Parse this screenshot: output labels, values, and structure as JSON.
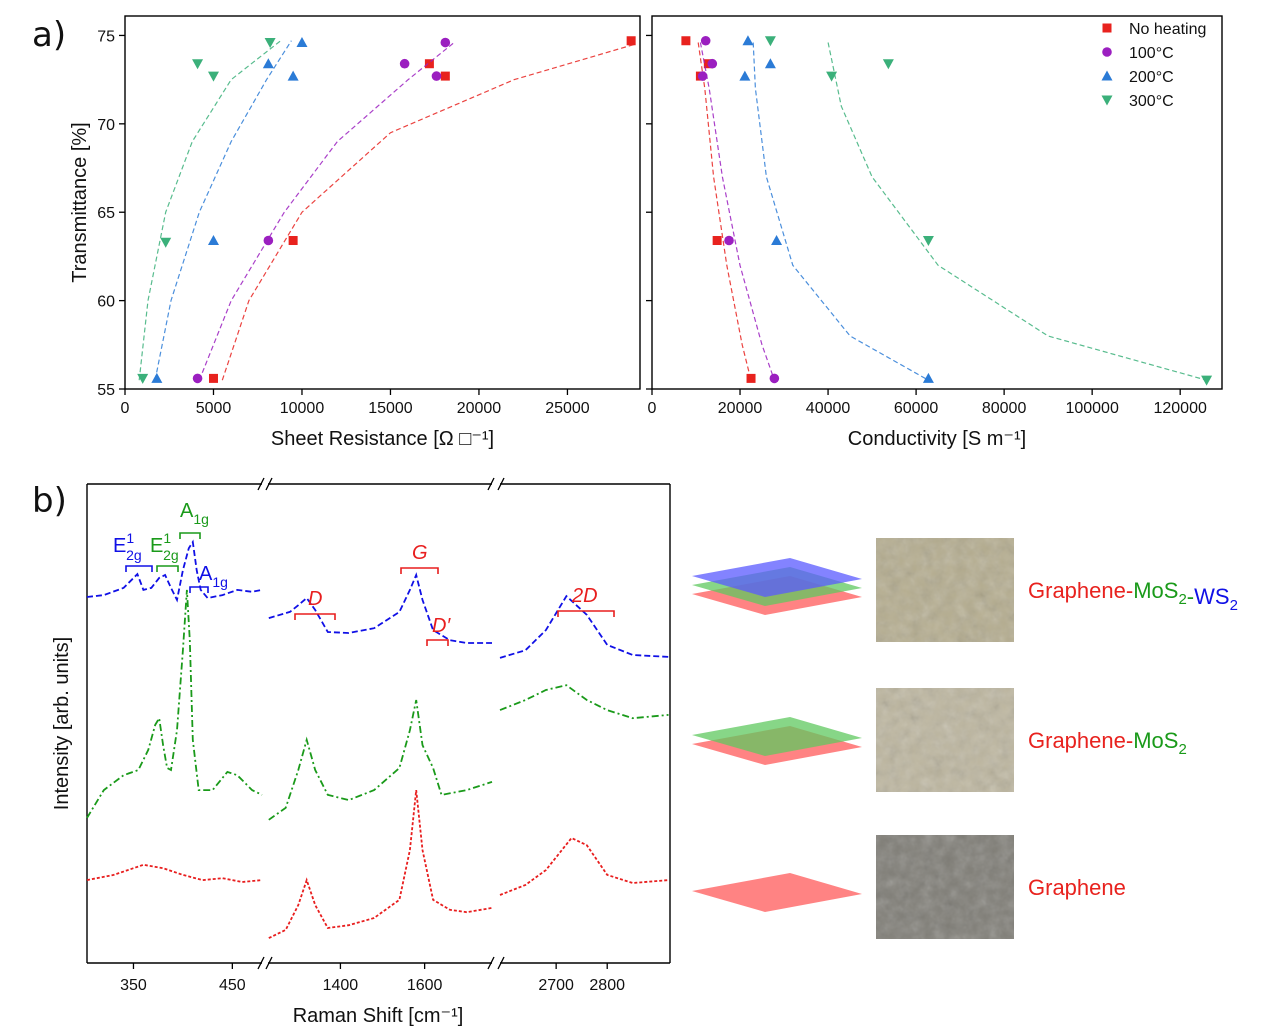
{
  "chart_data": [
    {
      "type": "scatter",
      "panel": "a)",
      "xlabel": "Sheet Resistance [Ω □⁻¹]",
      "ylabel": "Transmittance [%]",
      "xlim": [
        0,
        29100
      ],
      "xticks": [
        0,
        5000,
        10000,
        15000,
        20000,
        25000
      ],
      "ylim": [
        55,
        76.1
      ],
      "yticks": [
        55,
        60,
        65,
        70,
        75
      ],
      "series": [
        {
          "color": "#e8221e",
          "marker": "square",
          "x": [
            28600,
            17200,
            18100,
            9500,
            5000
          ],
          "values": [
            74.7,
            73.4,
            72.7,
            63.4,
            55.6
          ],
          "fit_x": [
            5500,
            7000,
            10000,
            15000,
            22000,
            28800
          ],
          "fit_values": [
            55.5,
            60,
            65,
            69.5,
            72.5,
            74.5
          ]
        },
        {
          "color": "#9b1fc0",
          "marker": "circle",
          "x": [
            18100,
            15800,
            17600,
            8100,
            4100
          ],
          "values": [
            74.6,
            73.4,
            72.7,
            63.4,
            55.6
          ],
          "fit_x": [
            4200,
            6000,
            9000,
            12000,
            16000,
            18600
          ],
          "fit_values": [
            55.5,
            60,
            65,
            69,
            72.5,
            74.6
          ]
        },
        {
          "color": "#2b7bd6",
          "marker": "triangle-up",
          "x": [
            10000,
            8100,
            9500,
            5000,
            1800
          ],
          "values": [
            74.6,
            73.4,
            72.7,
            63.4,
            55.6
          ],
          "fit_x": [
            1700,
            2600,
            4200,
            6000,
            8000,
            9400
          ],
          "fit_values": [
            55.5,
            60,
            65,
            69,
            72.5,
            74.7
          ]
        },
        {
          "color": "#3bb07a",
          "marker": "triangle-down",
          "x": [
            8200,
            4100,
            5000,
            2300,
            1000
          ],
          "values": [
            74.6,
            73.4,
            72.7,
            63.3,
            55.6
          ],
          "fit_x": [
            800,
            1300,
            2300,
            3800,
            6000,
            8800
          ],
          "fit_values": [
            55.5,
            60,
            65,
            69,
            72.5,
            74.7
          ]
        }
      ]
    },
    {
      "type": "scatter",
      "xlabel": "Conductivity [S m⁻¹]",
      "legend": "upper right",
      "xlim": [
        0,
        129500
      ],
      "xticks": [
        0,
        20000,
        40000,
        60000,
        80000,
        100000,
        120000
      ],
      "ylim": [
        55,
        76.1
      ],
      "yticks": [
        55,
        60,
        65,
        70,
        75
      ],
      "series": [
        {
          "name": "No heating",
          "color": "#e8221e",
          "marker": "square",
          "x": [
            7700,
            12800,
            11000,
            14800,
            22500
          ],
          "values": [
            74.7,
            73.4,
            72.7,
            63.4,
            55.6
          ],
          "fit_x": [
            10500,
            12000,
            14000,
            17000,
            20500,
            22500
          ],
          "fit_values": [
            74.6,
            72,
            67,
            62,
            57.5,
            55.5
          ]
        },
        {
          "name": "100°C",
          "color": "#9b1fc0",
          "marker": "circle",
          "x": [
            12200,
            13700,
            11500,
            17500,
            27800
          ],
          "values": [
            74.7,
            73.4,
            72.7,
            63.4,
            55.6
          ],
          "fit_x": [
            11000,
            13000,
            16000,
            20000,
            25000,
            27800
          ],
          "fit_values": [
            74.6,
            72,
            67,
            62,
            57.5,
            55.5
          ]
        },
        {
          "name": "200°C",
          "color": "#2b7bd6",
          "marker": "triangle-up",
          "x": [
            21800,
            26900,
            21100,
            28300,
            62800
          ],
          "values": [
            74.7,
            73.4,
            72.7,
            63.4,
            55.6
          ],
          "fit_x": [
            23000,
            23500,
            26000,
            32000,
            45000,
            62800
          ],
          "fit_values": [
            74.6,
            72,
            67,
            62,
            58,
            55.5
          ]
        },
        {
          "name": "300°C",
          "color": "#3bb07a",
          "marker": "triangle-down",
          "x": [
            26900,
            53700,
            40800,
            62800,
            126000
          ],
          "values": [
            74.7,
            73.4,
            72.7,
            63.4,
            55.5
          ],
          "fit_x": [
            40000,
            43000,
            50000,
            65000,
            90000,
            126000
          ],
          "fit_values": [
            74.6,
            71,
            67,
            62,
            58,
            55.5
          ]
        }
      ]
    },
    {
      "type": "line",
      "panel": "b)",
      "xlabel": "Raman Shift [cm⁻¹]",
      "ylabel": "Intensity [arb. units]",
      "broken_axis": true,
      "ylim": [
        0,
        100
      ],
      "segments": [
        {
          "xlim": [
            303,
            480
          ],
          "xticks": [
            350,
            450
          ]
        },
        {
          "xlim": [
            1228,
            1760
          ],
          "xticks": [
            1400,
            1600
          ]
        },
        {
          "xlim": [
            2590,
            2923
          ],
          "xticks": [
            2700,
            2800
          ]
        }
      ],
      "series": [
        {
          "color": "#1010e6",
          "dash": "6 3",
          "segments": [
            {
              "x": [
                303,
                320,
                340,
                354,
                360,
                368,
                376,
                382,
                388,
                394,
                400,
                406,
                410,
                414,
                418,
                425,
                440,
                455,
                470,
                480
              ],
              "values": [
                76.4,
                76.8,
                78.3,
                81.2,
                77.9,
                78.3,
                80.4,
                81.0,
                78.3,
                75.8,
                82.0,
                86.6,
                87.9,
                82.0,
                77.9,
                76.2,
                76.8,
                77.9,
                77.5,
                77.9
              ]
            },
            {
              "x": [
                1230,
                1280,
                1300,
                1320,
                1340,
                1370,
                1420,
                1480,
                1540,
                1565,
                1580,
                1595,
                1620,
                1660,
                1700,
                1760
              ],
              "values": [
                72.0,
                73.3,
                74.7,
                76.2,
                73.7,
                69.1,
                68.9,
                69.9,
                73.3,
                77.9,
                81.0,
                75.8,
                69.5,
                67.4,
                66.8,
                66.8
              ]
            },
            {
              "x": [
                2590,
                2640,
                2680,
                2720,
                2760,
                2800,
                2850,
                2920
              ],
              "values": [
                63.7,
                65.3,
                69.5,
                76.6,
                72.7,
                66.4,
                64.3,
                63.9
              ]
            }
          ]
        },
        {
          "color": "#1a9a1a",
          "dash": "7 3 2 3",
          "segments": [
            {
              "x": [
                303,
                320,
                340,
                355,
                365,
                372,
                376,
                380,
                384,
                388,
                394,
                400,
                404,
                407,
                410,
                416,
                430,
                445,
                455,
                470,
                480
              ],
              "values": [
                30.3,
                36.1,
                39.2,
                40.3,
                44.5,
                49.7,
                51.1,
                45.5,
                40.7,
                40.3,
                48.6,
                65.3,
                77.9,
                67.4,
                46.6,
                36.1,
                36.1,
                39.9,
                39.2,
                36.1,
                35.1
              ]
            },
            {
              "x": [
                1230,
                1270,
                1300,
                1320,
                1340,
                1370,
                1420,
                1480,
                1540,
                1565,
                1580,
                1595,
                1620,
                1640,
                1700,
                1760
              ],
              "values": [
                29.9,
                32.4,
                40.3,
                46.6,
                40.3,
                35.1,
                34.0,
                36.1,
                40.7,
                48.6,
                54.9,
                45.5,
                40.7,
                35.1,
                36.1,
                37.8
              ]
            },
            {
              "x": [
                2590,
                2640,
                2680,
                2720,
                2760,
                2800,
                2850,
                2920
              ],
              "values": [
                52.8,
                54.9,
                57.0,
                58.0,
                54.9,
                52.8,
                51.1,
                51.8
              ]
            }
          ]
        },
        {
          "color": "#e81e1e",
          "dash": "3 2",
          "segments": [
            {
              "x": [
                303,
                330,
                360,
                380,
                400,
                420,
                440,
                460,
                480
              ],
              "values": [
                17.3,
                18.4,
                20.5,
                19.8,
                18.4,
                17.3,
                17.7,
                16.9,
                17.3
              ]
            },
            {
              "x": [
                1230,
                1270,
                1300,
                1320,
                1340,
                1370,
                1420,
                1480,
                1540,
                1565,
                1580,
                1595,
                1620,
                1660,
                1700,
                1760
              ],
              "values": [
                5.2,
                6.9,
                12.1,
                17.3,
                12.1,
                7.3,
                7.9,
                9.4,
                13.2,
                23.6,
                36.1,
                23.6,
                13.2,
                11.1,
                10.6,
                11.5
              ]
            },
            {
              "x": [
                2590,
                2640,
                2680,
                2730,
                2760,
                2800,
                2850,
                2920
              ],
              "values": [
                14.2,
                16.3,
                19.4,
                26.1,
                24.6,
                18.4,
                16.7,
                17.3
              ]
            }
          ]
        }
      ],
      "annotations": [
        {
          "text": "E",
          "sup": "1",
          "sub": "2g",
          "color": "#1010e6"
        },
        {
          "text": "E",
          "sup": "1",
          "sub": "2g",
          "color": "#1a9a1a"
        },
        {
          "text": "A",
          "sub": "1g",
          "color": "#1a9a1a"
        },
        {
          "text": "A",
          "sub": "1g",
          "color": "#1010e6"
        },
        {
          "text": "D",
          "italic": true,
          "color": "#e81e1e"
        },
        {
          "text": "G",
          "italic": true,
          "color": "#e81e1e"
        },
        {
          "text": "D′",
          "italic": true,
          "color": "#e81e1e"
        },
        {
          "text": "2D",
          "italic": true,
          "color": "#e81e1e"
        }
      ]
    }
  ],
  "samples": [
    {
      "layers": [
        "#ff5a5a",
        "#5fc85f",
        "#5a5aff"
      ],
      "label": [
        {
          "text": "Graphene",
          "color": "#e8221e"
        },
        {
          "text": "-",
          "color": "#e8221e"
        },
        {
          "text": "MoS",
          "sub": "2",
          "color": "#1a9a1a"
        },
        {
          "text": "-",
          "color": "#1a9a1a"
        },
        {
          "text": "WS",
          "sub": "2",
          "color": "#1010e6"
        }
      ]
    },
    {
      "layers": [
        "#ff5a5a",
        "#5fc85f"
      ],
      "label": [
        {
          "text": "Graphene",
          "color": "#e8221e"
        },
        {
          "text": "-",
          "color": "#e8221e"
        },
        {
          "text": "MoS",
          "sub": "2",
          "color": "#1a9a1a"
        }
      ]
    },
    {
      "layers": [
        "#ff5a5a"
      ],
      "label": [
        {
          "text": "Graphene",
          "color": "#e8221e"
        }
      ]
    }
  ]
}
